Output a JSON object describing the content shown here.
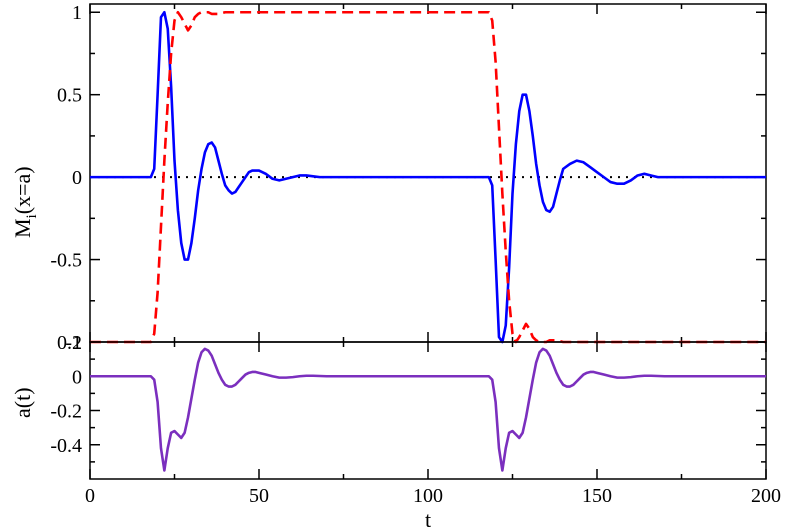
{
  "chart_data": [
    {
      "type": "line",
      "xlabel": "",
      "ylabel": "M_i(x=a)",
      "ylabel_main": "M",
      "ylabel_sub": "i",
      "ylabel_rest": "(x=a)",
      "xlim": [
        0,
        200
      ],
      "ylim": [
        -1.0,
        1.05
      ],
      "x_ticks": [
        0,
        50,
        100,
        150,
        200
      ],
      "y_ticks": [
        -1,
        -0.5,
        0,
        0.5,
        1
      ],
      "y_tick_labels": [
        "-1",
        "-0.5",
        "0",
        "0.5",
        "1"
      ],
      "grid": false,
      "legend": "none",
      "reference_line": {
        "y": 0,
        "style": "dotted",
        "color": "#000000"
      },
      "series": [
        {
          "color": "#0000ff",
          "style": "solid",
          "x": [
            0,
            18,
            19,
            20,
            21,
            22,
            23,
            24,
            25,
            26,
            27,
            28,
            29,
            30,
            31,
            32,
            33,
            34,
            35,
            36,
            37,
            38,
            39,
            40,
            41,
            42,
            43,
            44,
            45,
            46,
            47,
            48,
            50,
            52,
            54,
            56,
            58,
            60,
            62,
            64,
            66,
            68,
            70,
            72,
            80,
            100,
            118,
            119,
            120,
            121,
            122,
            123,
            124,
            125,
            126,
            127,
            128,
            129,
            130,
            131,
            132,
            133,
            134,
            135,
            136,
            137,
            138,
            139,
            140,
            142,
            144,
            146,
            148,
            150,
            152,
            154,
            156,
            158,
            160,
            162,
            164,
            166,
            168,
            170,
            180,
            200
          ],
          "y": [
            0,
            0,
            0.05,
            0.5,
            0.97,
            1.0,
            0.9,
            0.55,
            0.1,
            -0.2,
            -0.4,
            -0.5,
            -0.5,
            -0.4,
            -0.25,
            -0.08,
            0.05,
            0.15,
            0.2,
            0.21,
            0.18,
            0.1,
            0.02,
            -0.05,
            -0.08,
            -0.1,
            -0.09,
            -0.06,
            -0.03,
            0,
            0.03,
            0.04,
            0.04,
            0.02,
            -0.01,
            -0.02,
            -0.01,
            0,
            0.01,
            0.01,
            0.005,
            0,
            0,
            0,
            0,
            0,
            0,
            -0.05,
            -0.5,
            -0.97,
            -1.0,
            -0.9,
            -0.55,
            -0.1,
            0.2,
            0.4,
            0.5,
            0.5,
            0.4,
            0.25,
            0.08,
            -0.05,
            -0.15,
            -0.2,
            -0.21,
            -0.18,
            -0.1,
            -0.02,
            0.05,
            0.08,
            0.1,
            0.09,
            0.06,
            0.03,
            0,
            -0.03,
            -0.04,
            -0.04,
            -0.02,
            0.01,
            0.02,
            0.01,
            0,
            0,
            0,
            0
          ]
        },
        {
          "color": "#ff0000",
          "style": "dashed",
          "x": [
            0,
            18,
            19,
            20,
            21,
            22,
            23,
            24,
            25,
            26,
            27,
            28,
            29,
            30,
            31,
            32,
            33,
            34,
            35,
            36,
            38,
            40,
            45,
            50,
            60,
            80,
            100,
            118,
            119,
            120,
            121,
            122,
            123,
            124,
            125,
            126,
            127,
            128,
            129,
            130,
            131,
            132,
            133,
            134,
            135,
            136,
            138,
            140,
            145,
            150,
            160,
            180,
            200
          ],
          "y": [
            -1,
            -1,
            -0.95,
            -0.7,
            -0.3,
            0.1,
            0.45,
            0.75,
            0.95,
            1.0,
            0.97,
            0.93,
            0.89,
            0.92,
            0.97,
            0.99,
            1.0,
            1.0,
            1.0,
            0.99,
            0.99,
            1.0,
            1.0,
            1.0,
            1.0,
            1.0,
            1.0,
            1.0,
            0.95,
            0.7,
            0.3,
            -0.1,
            -0.45,
            -0.75,
            -0.95,
            -1.0,
            -0.97,
            -0.93,
            -0.89,
            -0.92,
            -0.97,
            -0.99,
            -1.0,
            -1.0,
            -1.0,
            -0.99,
            -0.99,
            -1.0,
            -1.0,
            -1.0,
            -1.0,
            -1.0,
            -1.0
          ]
        }
      ]
    },
    {
      "type": "line",
      "xlabel": "t",
      "ylabel": "a(t)",
      "xlim": [
        0,
        200
      ],
      "ylim": [
        -0.6,
        0.2
      ],
      "x_ticks": [
        0,
        50,
        100,
        150,
        200
      ],
      "x_tick_labels": [
        "0",
        "50",
        "100",
        "150",
        "200"
      ],
      "y_ticks": [
        -0.4,
        -0.2,
        0,
        0.2
      ],
      "y_tick_labels": [
        "-0.4",
        "-0.2",
        "0",
        "0.2"
      ],
      "grid": false,
      "legend": "none",
      "series": [
        {
          "color": "#7b2fbe",
          "style": "solid",
          "x": [
            0,
            18,
            19,
            20,
            21,
            22,
            23,
            24,
            25,
            26,
            27,
            28,
            29,
            30,
            31,
            32,
            33,
            34,
            35,
            36,
            37,
            38,
            39,
            40,
            41,
            42,
            43,
            44,
            45,
            46,
            47,
            48,
            49,
            50,
            52,
            54,
            56,
            58,
            60,
            62,
            64,
            66,
            70,
            80,
            100,
            118,
            119,
            120,
            121,
            122,
            123,
            124,
            125,
            126,
            127,
            128,
            129,
            130,
            131,
            132,
            133,
            134,
            135,
            136,
            137,
            138,
            139,
            140,
            141,
            142,
            143,
            144,
            145,
            146,
            147,
            148,
            149,
            150,
            152,
            154,
            156,
            158,
            160,
            162,
            164,
            166,
            170,
            180,
            200
          ],
          "y": [
            0,
            0,
            -0.02,
            -0.15,
            -0.42,
            -0.55,
            -0.42,
            -0.33,
            -0.32,
            -0.34,
            -0.36,
            -0.33,
            -0.24,
            -0.13,
            -0.02,
            0.08,
            0.14,
            0.16,
            0.15,
            0.12,
            0.07,
            0.02,
            -0.02,
            -0.05,
            -0.06,
            -0.06,
            -0.05,
            -0.03,
            -0.01,
            0.01,
            0.02,
            0.025,
            0.025,
            0.02,
            0.01,
            0,
            -0.008,
            -0.008,
            -0.005,
            0,
            0.003,
            0.003,
            0,
            0,
            0,
            0,
            -0.02,
            -0.15,
            -0.42,
            -0.55,
            -0.42,
            -0.33,
            -0.32,
            -0.34,
            -0.36,
            -0.33,
            -0.24,
            -0.13,
            -0.02,
            0.08,
            0.14,
            0.16,
            0.15,
            0.12,
            0.07,
            0.02,
            -0.02,
            -0.05,
            -0.06,
            -0.06,
            -0.05,
            -0.03,
            -0.01,
            0.01,
            0.02,
            0.025,
            0.025,
            0.02,
            0.01,
            0,
            -0.008,
            -0.008,
            -0.005,
            0,
            0.003,
            0.003,
            0,
            0,
            0
          ]
        }
      ]
    }
  ]
}
